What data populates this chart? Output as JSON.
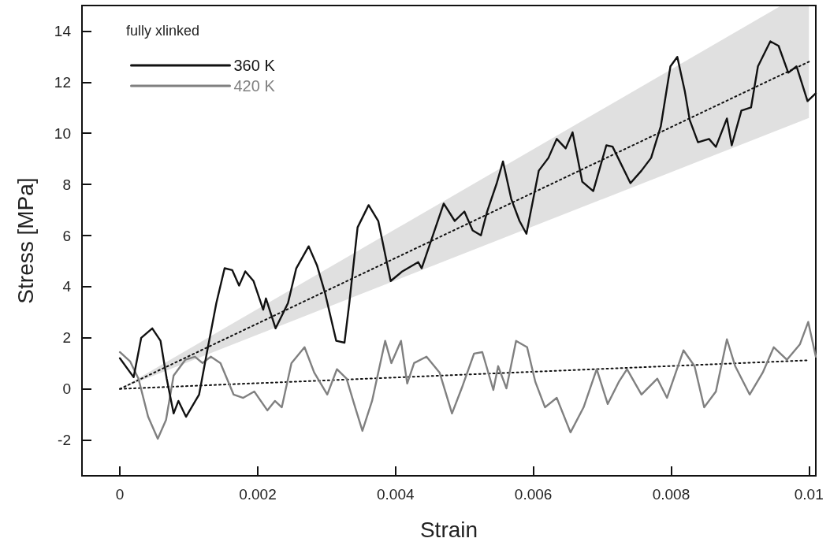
{
  "chart_data": {
    "type": "line",
    "xlabel": "Strain",
    "ylabel": "Stress [MPa]",
    "legend_title": "fully xlinked",
    "legend": "top left",
    "grid": false,
    "marker": "none",
    "xlim": [
      -0.00055,
      0.0101
    ],
    "xticks": [
      0,
      0.002,
      0.004,
      0.006,
      0.008,
      0.01
    ],
    "ylim": [
      -3.4,
      15
    ],
    "yticks": [
      -2,
      0,
      2,
      4,
      6,
      8,
      10,
      12,
      14
    ],
    "series": [
      {
        "name": "360 K",
        "color": "#111111",
        "line_style": "solid",
        "x": [
          0,
          0.00015,
          0.0002,
          0.00031,
          0.00047,
          0.00059,
          0.00068,
          0.00078,
          0.00085,
          0.00096,
          0.00115,
          0.00126,
          0.0014,
          0.00152,
          0.00163,
          0.00173,
          0.00182,
          0.00194,
          0.00208,
          0.00212,
          0.00226,
          0.00244,
          0.00256,
          0.00274,
          0.00286,
          0.00298,
          0.00314,
          0.00326,
          0.00333,
          0.00345,
          0.00361,
          0.00375,
          0.00393,
          0.0041,
          0.00433,
          0.00438,
          0.00452,
          0.0047,
          0.00486,
          0.005,
          0.00512,
          0.00524,
          0.00533,
          0.00547,
          0.00556,
          0.00568,
          0.0058,
          0.0059,
          0.00608,
          0.00622,
          0.00634,
          0.00647,
          0.00657,
          0.00671,
          0.00687,
          0.00706,
          0.00715,
          0.00741,
          0.00757,
          0.00771,
          0.00785,
          0.00799,
          0.00809,
          0.0082,
          0.00827,
          0.00839,
          0.00855,
          0.00865,
          0.00881,
          0.00888,
          0.00902,
          0.00916,
          0.00926,
          0.00944,
          0.00956,
          0.0097,
          0.00982,
          0.00998,
          0.0101
        ],
        "values": [
          1.2,
          0.64,
          0.46,
          2.0,
          2.37,
          1.88,
          0.4,
          -0.96,
          -0.47,
          -1.09,
          -0.22,
          1.38,
          3.36,
          4.72,
          4.65,
          4.04,
          4.6,
          4.22,
          3.1,
          3.54,
          2.37,
          3.36,
          4.72,
          5.58,
          4.84,
          3.73,
          1.88,
          1.81,
          3.36,
          6.32,
          7.19,
          6.57,
          4.22,
          4.6,
          4.96,
          4.72,
          5.83,
          7.25,
          6.57,
          6.94,
          6.2,
          6.01,
          6.94,
          8.05,
          8.9,
          7.43,
          6.57,
          6.07,
          8.54,
          9.04,
          9.78,
          9.41,
          10.04,
          8.11,
          7.74,
          9.53,
          9.48,
          8.05,
          8.54,
          9.04,
          10.27,
          12.62,
          12.99,
          11.63,
          10.52,
          9.65,
          9.78,
          9.47,
          10.58,
          9.53,
          10.89,
          11.01,
          12.62,
          13.6,
          13.42,
          12.37,
          12.62,
          11.26,
          11.57
        ]
      },
      {
        "name": "420 K",
        "color": "#808080",
        "line_style": "solid",
        "x": [
          0,
          0.00015,
          0.00027,
          0.00041,
          0.00055,
          0.00067,
          0.00078,
          0.00095,
          0.00109,
          0.0012,
          0.00132,
          0.00146,
          0.00165,
          0.00179,
          0.00195,
          0.00214,
          0.00225,
          0.00235,
          0.00249,
          0.00268,
          0.00282,
          0.00301,
          0.00315,
          0.00329,
          0.0034,
          0.00352,
          0.00366,
          0.00385,
          0.00394,
          0.00408,
          0.00417,
          0.00427,
          0.00445,
          0.00464,
          0.00482,
          0.00496,
          0.00514,
          0.00526,
          0.00542,
          0.00549,
          0.00561,
          0.00575,
          0.00591,
          0.00603,
          0.00617,
          0.00634,
          0.00654,
          0.00673,
          0.00692,
          0.00708,
          0.00724,
          0.00736,
          0.00757,
          0.0078,
          0.00794,
          0.00818,
          0.00834,
          0.00848,
          0.00865,
          0.00881,
          0.00893,
          0.00914,
          0.00933,
          0.00949,
          0.00968,
          0.00987,
          0.00999,
          0.0101
        ],
        "values": [
          1.44,
          1.07,
          0.4,
          -1.09,
          -1.95,
          -1.21,
          0.52,
          1.14,
          1.26,
          1.01,
          1.26,
          1.01,
          -0.22,
          -0.35,
          -0.1,
          -0.84,
          -0.47,
          -0.72,
          1.01,
          1.63,
          0.64,
          -0.22,
          0.77,
          0.4,
          -0.59,
          -1.64,
          -0.47,
          1.88,
          1.01,
          1.88,
          0.21,
          1.01,
          1.26,
          0.64,
          -0.96,
          0.02,
          1.38,
          1.44,
          -0.04,
          0.89,
          0.02,
          1.88,
          1.63,
          0.27,
          -0.72,
          -0.35,
          -1.7,
          -0.72,
          0.77,
          -0.59,
          0.27,
          0.77,
          -0.22,
          0.4,
          -0.35,
          1.51,
          0.89,
          -0.72,
          -0.1,
          1.94,
          0.89,
          -0.22,
          0.64,
          1.63,
          1.14,
          1.75,
          2.62,
          1.26
        ]
      },
      {
        "color": "#111111",
        "line_style": "dotted",
        "x": [
          0,
          0.0096,
          0.01
        ],
        "values": [
          0,
          12.29,
          12.8
        ],
        "lower": [
          0,
          10.18,
          10.6
        ],
        "upper": [
          0,
          15,
          15
        ]
      },
      {
        "color": "#111111",
        "line_style": "dotted",
        "x": [
          0,
          0.01
        ],
        "values": [
          0,
          1.12
        ]
      }
    ]
  }
}
